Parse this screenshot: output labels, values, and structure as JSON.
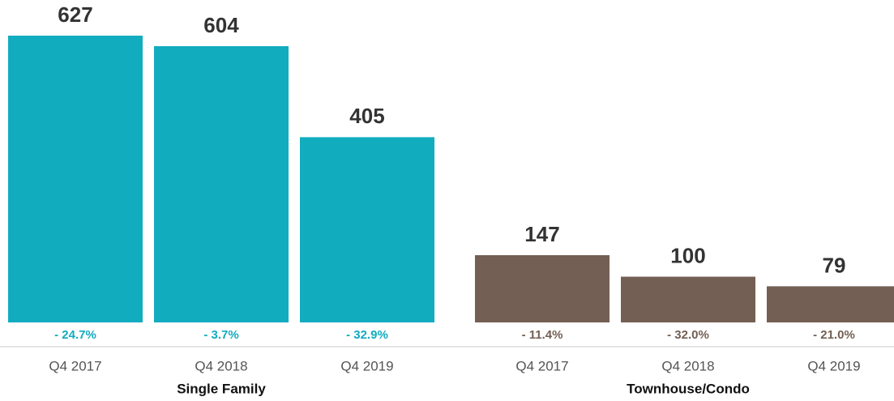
{
  "chart_data": [
    {
      "type": "bar",
      "xlabel": "Single Family",
      "color": "#12acbf",
      "categories": [
        "Q4 2017",
        "Q4 2018",
        "Q4 2019"
      ],
      "values": [
        627,
        604,
        405
      ],
      "change_labels": [
        "- 24.7%",
        "- 3.7%",
        "- 32.9%"
      ]
    },
    {
      "type": "bar",
      "xlabel": "Townhouse/Condo",
      "color": "#735f53",
      "categories": [
        "Q4 2017",
        "Q4 2018",
        "Q4 2019"
      ],
      "values": [
        147,
        100,
        79
      ],
      "change_labels": [
        "- 11.4%",
        "- 32.0%",
        "- 21.0%"
      ]
    }
  ]
}
